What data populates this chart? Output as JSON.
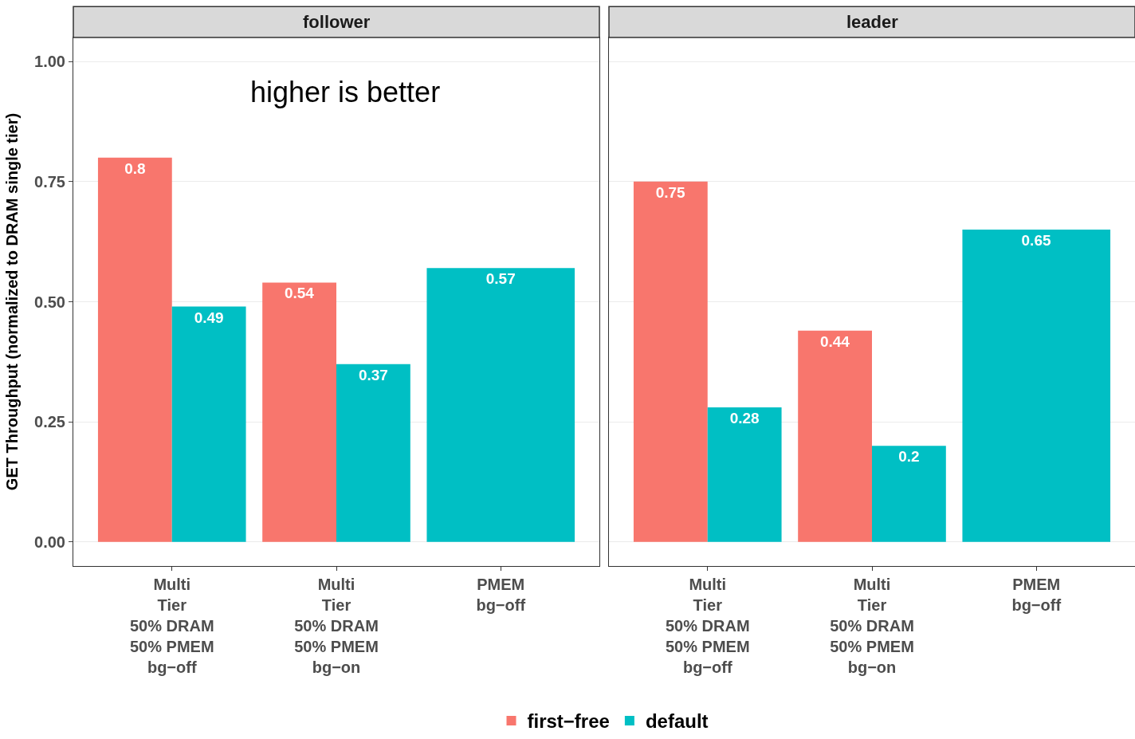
{
  "chart_data": [
    {
      "type": "bar",
      "title": "follower",
      "ylabel": "GET Throughput (normalized to DRAM single tier)",
      "annotations": [
        "higher is better"
      ],
      "categories": [
        "Multi\nTier\n50% DRAM\n50% PMEM\nbg−off",
        "Multi\nTier\n50% DRAM\n50% PMEM\nbg−on",
        "PMEM\nbg−off"
      ],
      "series": [
        {
          "name": "first−free",
          "color": "#f8766d",
          "values": [
            0.8,
            0.54,
            null
          ]
        },
        {
          "name": "default",
          "color": "#00bfc4",
          "values": [
            0.49,
            0.37,
            0.57
          ]
        }
      ],
      "ylim": [
        -0.05,
        1.05
      ],
      "yticks": [
        {
          "value": 0,
          "label": "0.00"
        },
        {
          "value": 0.25,
          "label": "0.25"
        },
        {
          "value": 0.5,
          "label": "0.50"
        },
        {
          "value": 0.75,
          "label": "0.75"
        },
        {
          "value": 1,
          "label": "1.00"
        }
      ],
      "data_labels": true,
      "grid": true,
      "legend": "bottom"
    },
    {
      "type": "bar",
      "title": "leader",
      "categories": [
        "Multi\nTier\n50% DRAM\n50% PMEM\nbg−off",
        "Multi\nTier\n50% DRAM\n50% PMEM\nbg−on",
        "PMEM\nbg−off"
      ],
      "series": [
        {
          "name": "first−free",
          "color": "#f8766d",
          "values": [
            0.75,
            0.44,
            null
          ]
        },
        {
          "name": "default",
          "color": "#00bfc4",
          "values": [
            0.28,
            0.2,
            0.65
          ]
        }
      ],
      "ylim": [
        -0.05,
        1.05
      ],
      "yticks": [
        0,
        0.25,
        0.5,
        0.75,
        1
      ],
      "data_labels": true,
      "grid": true,
      "tick_labels": "x"
    }
  ]
}
